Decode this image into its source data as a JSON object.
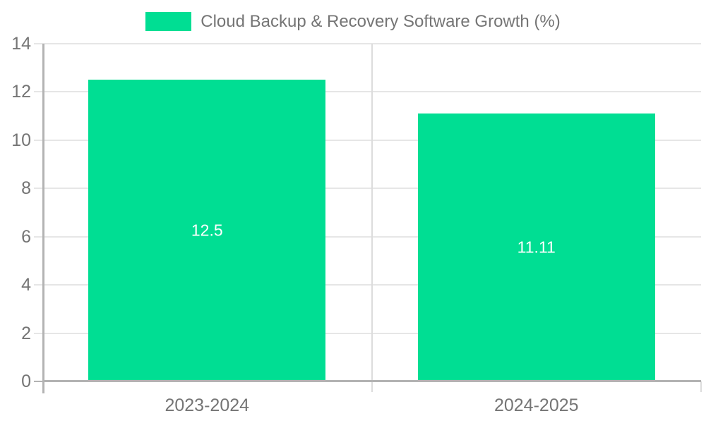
{
  "chart_data": {
    "type": "bar",
    "title": "Cloud Backup & Recovery Software Growth (%)",
    "categories": [
      "2023-2024",
      "2024-2025"
    ],
    "values": [
      12.5,
      11.11
    ],
    "value_labels": [
      "12.5",
      "11.11"
    ],
    "series": [
      {
        "name": "Cloud Backup & Recovery Software Growth (%)",
        "values": [
          12.5,
          11.11
        ]
      }
    ],
    "xlabel": "",
    "ylabel": "",
    "ylim": [
      0,
      14
    ],
    "yticks": [
      0,
      2,
      4,
      6,
      8,
      10,
      12,
      14
    ],
    "grid": true,
    "legend_position": "top",
    "colors": {
      "bar": "#00de93",
      "text": "#757575",
      "value_label": "#ffffff",
      "axis": "#b3b3b3",
      "grid": "#e6e6e6",
      "grid_vertical": "#dcdcdc",
      "background": "#ffffff"
    }
  }
}
